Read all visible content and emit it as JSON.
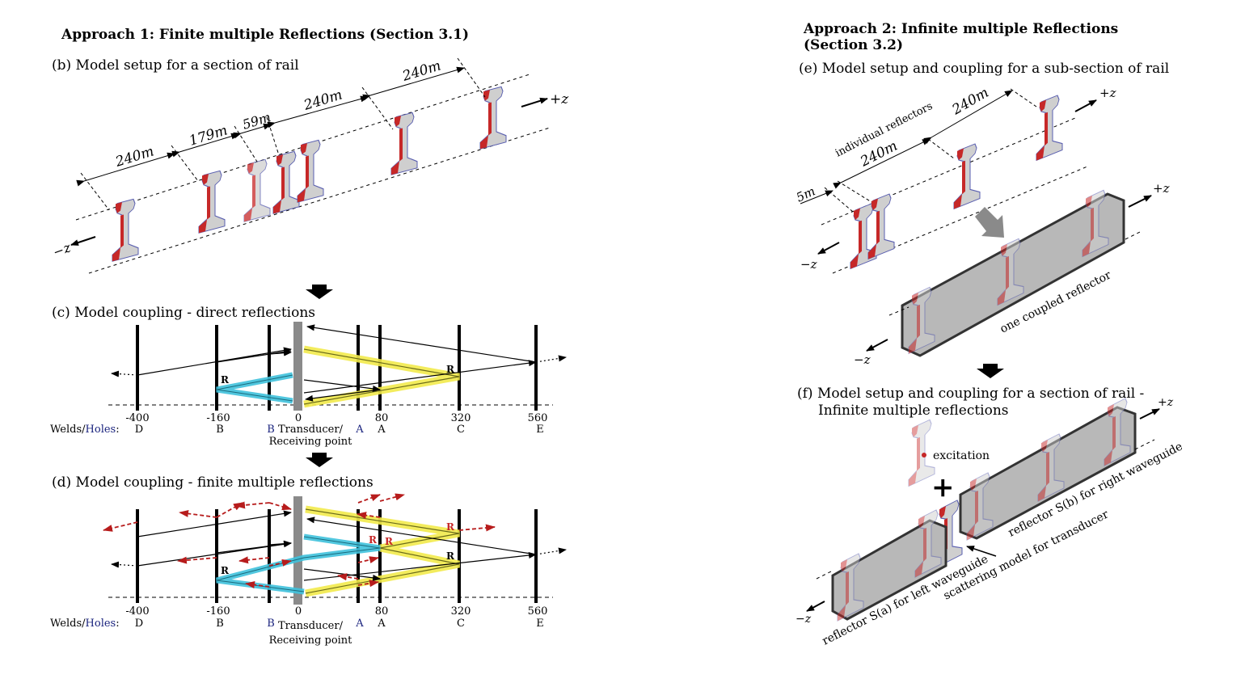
{
  "approach1": {
    "title": "Approach 1: Finite multiple Reflections (Section 3.1)",
    "panel_b": {
      "caption": "(b) Model setup for a section of rail",
      "dims": [
        "240m",
        "179m",
        "59m",
        "240m",
        "240m"
      ],
      "axis_pos": "+z",
      "axis_neg": "−z"
    },
    "panel_c": {
      "caption": "(c) Model coupling - direct reflections",
      "positions": [
        "-400",
        "-160",
        "0",
        "80",
        "320",
        "560"
      ],
      "row_label_welds": "Welds",
      "row_label_holes": "Holes",
      "labels": [
        "D",
        "B",
        "B",
        "A",
        "A",
        "C",
        "E"
      ],
      "transducer": [
        "Transducer/",
        "Receiving point"
      ],
      "r_marker": "R"
    },
    "panel_d": {
      "caption": "(d) Model coupling - finite multiple reflections",
      "positions": [
        "-400",
        "-160",
        "0",
        "80",
        "320",
        "560"
      ],
      "row_label_welds": "Welds",
      "row_label_holes": "Holes",
      "labels": [
        "D",
        "B",
        "B",
        "A",
        "A",
        "C",
        "E"
      ],
      "transducer": [
        "Transducer/",
        "Receiving point"
      ],
      "r_marker": "R"
    }
  },
  "approach2": {
    "title_line1": "Approach 2: Infinite multiple Reflections",
    "title_line2": "(Section 3.2)",
    "panel_e": {
      "caption": "(e) Model setup and coupling for a sub-section of rail",
      "dims": [
        "5m",
        "240m",
        "240m"
      ],
      "individual": "individual reflectors",
      "coupled": "one coupled reflector",
      "axis_pos": "+z",
      "axis_neg": "−z"
    },
    "panel_f": {
      "caption_line1": "(f) Model setup and coupling for a section of rail -",
      "caption_line2": "Infinite multiple reflections",
      "excitation": "excitation",
      "plus": "+",
      "left_label": "reflector S(a) for left waveguide",
      "right_label": "reflector S(b) for right waveguide",
      "transducer_label": "scattering model for transducer",
      "axis_pos": "+z",
      "axis_neg": "−z"
    }
  },
  "colors": {
    "rail_red": "#c62828",
    "rail_grey": "#cfcfcf",
    "rail_blue": "#5a5fb0",
    "yellow": "#f2ea4b",
    "cyan": "#3ec1dc",
    "dashed_red": "#b71c1c",
    "holes_blue": "#1a237e",
    "transducer": "#8a8a8a",
    "block": "#b8b8b8"
  }
}
